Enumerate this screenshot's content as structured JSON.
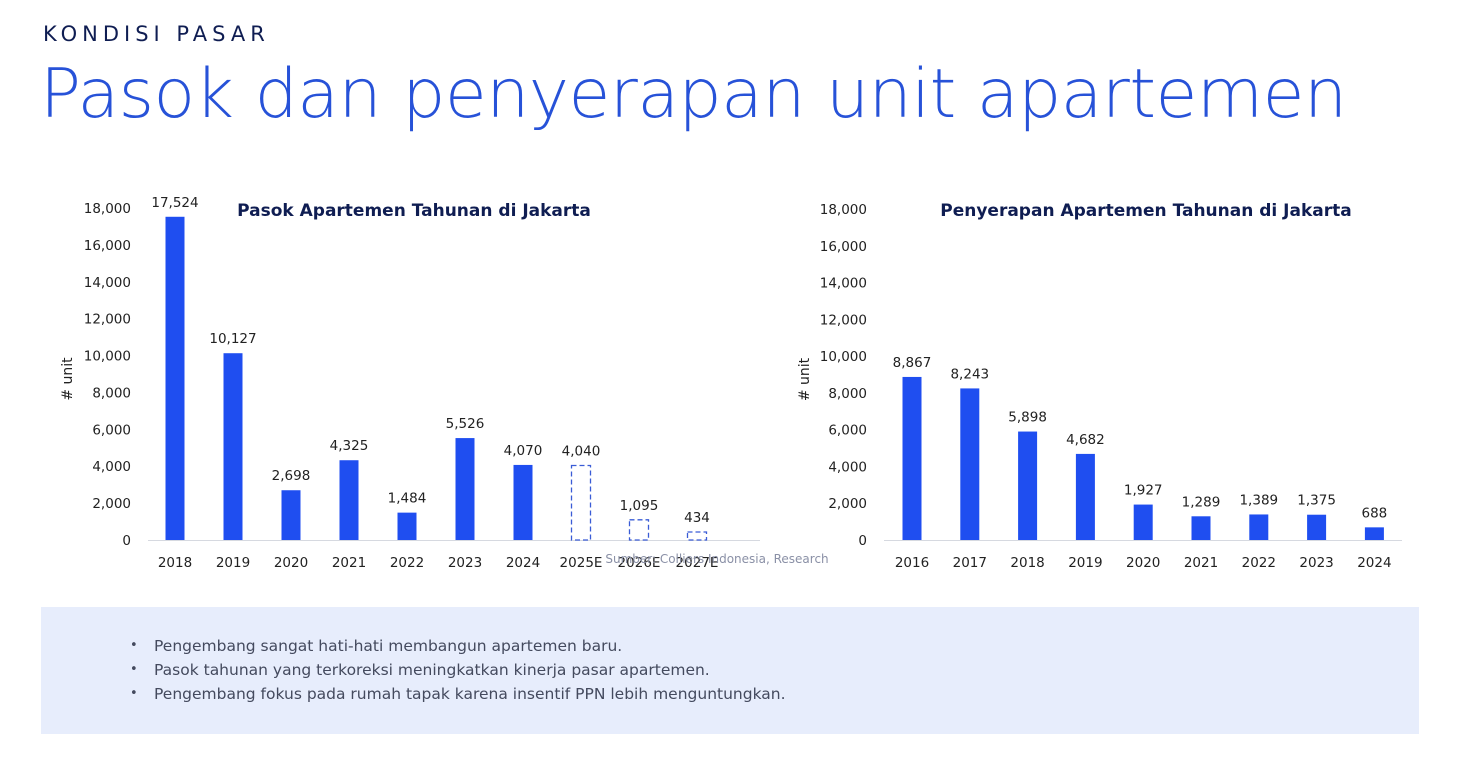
{
  "header": {
    "eyebrow": "KONDISI PASAR",
    "title": "Pasok dan penyerapan unit apartemen"
  },
  "colors": {
    "accent": "#2752d8",
    "bar": "#1f4ef0",
    "estimate_outline": "#3a5cd6",
    "note_bg": "#e7edfc"
  },
  "source": "Sumber: Colliers Indonesia, Research",
  "chart_data": [
    {
      "type": "bar",
      "title": "Pasok Apartemen Tahunan di Jakarta",
      "ylabel": "# unit",
      "ylim": [
        0,
        18000
      ],
      "yticks": [
        "0",
        "2,000",
        "4,000",
        "6,000",
        "8,000",
        "10,000",
        "12,000",
        "14,000",
        "16,000",
        "18,000"
      ],
      "grid": false,
      "categories": [
        "2018",
        "2019",
        "2020",
        "2021",
        "2022",
        "2023",
        "2024",
        "2025E",
        "2026E",
        "2027E"
      ],
      "values": [
        17524,
        10127,
        2698,
        4325,
        1484,
        5526,
        4070,
        4040,
        1095,
        434
      ],
      "labels": [
        "17,524",
        "10,127",
        "2,698",
        "4,325",
        "1,484",
        "5,526",
        "4,070",
        "4,040",
        "1,095",
        "434"
      ],
      "estimate": [
        false,
        false,
        false,
        false,
        false,
        false,
        false,
        true,
        true,
        true
      ]
    },
    {
      "type": "bar",
      "title": "Penyerapan Apartemen Tahunan di Jakarta",
      "ylabel": "# unit",
      "ylim": [
        0,
        18000
      ],
      "yticks": [
        "0",
        "2,000",
        "4,000",
        "6,000",
        "8,000",
        "10,000",
        "12,000",
        "14,000",
        "16,000",
        "18,000"
      ],
      "grid": false,
      "categories": [
        "2016",
        "2017",
        "2018",
        "2019",
        "2020",
        "2021",
        "2022",
        "2023",
        "2024"
      ],
      "values": [
        8867,
        8243,
        5898,
        4682,
        1927,
        1289,
        1389,
        1375,
        688
      ],
      "labels": [
        "8,867",
        "8,243",
        "5,898",
        "4,682",
        "1,927",
        "1,289",
        "1,389",
        "1,375",
        "688"
      ],
      "estimate": [
        false,
        false,
        false,
        false,
        false,
        false,
        false,
        false,
        false
      ]
    }
  ],
  "notes": [
    "Pengembang sangat hati-hati membangun apartemen baru.",
    "Pasok tahunan yang terkoreksi meningkatkan kinerja pasar apartemen.",
    "Pengembang fokus pada rumah tapak karena insentif PPN lebih menguntungkan."
  ]
}
